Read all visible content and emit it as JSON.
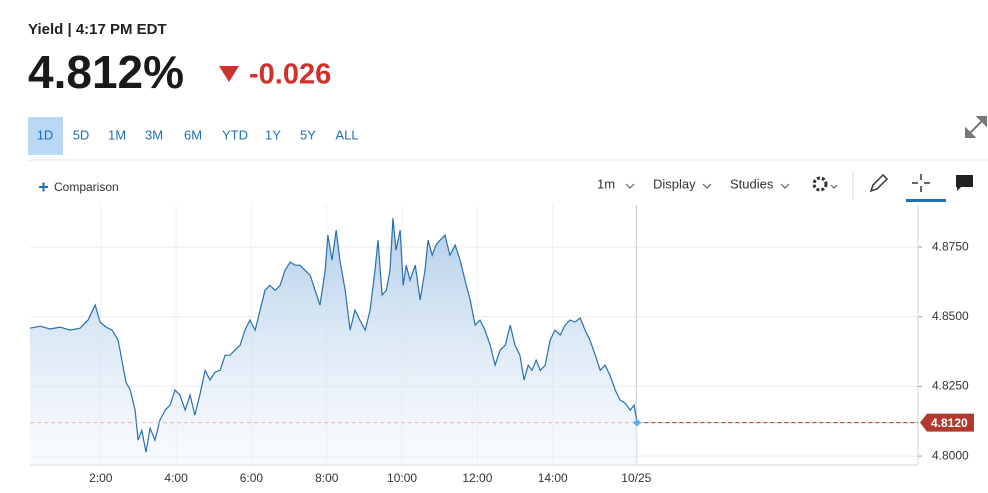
{
  "header": {
    "title": "Yield | 4:17 PM EDT",
    "price": "4.812%",
    "change": "-0.026"
  },
  "ranges": [
    "1D",
    "5D",
    "1M",
    "3M",
    "6M",
    "YTD",
    "1Y",
    "5Y",
    "ALL"
  ],
  "toolbar": {
    "comparison": "Comparison",
    "interval": "1m",
    "display": "Display",
    "studies": "Studies"
  },
  "chart_data": {
    "type": "area",
    "color": "#2a6fb0",
    "grid": true,
    "xlim": [
      0.12,
      23.7
    ],
    "ylim": [
      4.7968,
      4.8901
    ],
    "xticks": [
      {
        "value": 2,
        "label": "2:00"
      },
      {
        "value": 4,
        "label": "4:00"
      },
      {
        "value": 6,
        "label": "6:00"
      },
      {
        "value": 8,
        "label": "8:00"
      },
      {
        "value": 10,
        "label": "10:00"
      },
      {
        "value": 12,
        "label": "12:00"
      },
      {
        "value": 14,
        "label": "14:00"
      },
      {
        "value": 16.22,
        "label": "10/25"
      }
    ],
    "yticks": [
      {
        "value": 4.8,
        "label": "4.8000"
      },
      {
        "value": 4.825,
        "label": "4.8250"
      },
      {
        "value": 4.85,
        "label": "4.8500"
      },
      {
        "value": 4.875,
        "label": "4.8750"
      }
    ],
    "last_price": {
      "value": 4.812,
      "label": "4.8120"
    },
    "x": [
      0.12,
      0.39,
      0.65,
      0.92,
      1.18,
      1.45,
      1.66,
      1.85,
      1.98,
      2.14,
      2.3,
      2.46,
      2.56,
      2.67,
      2.78,
      2.91,
      2.99,
      3.09,
      3.2,
      3.31,
      3.44,
      3.57,
      3.71,
      3.84,
      3.97,
      4.1,
      4.24,
      4.37,
      4.5,
      4.63,
      4.77,
      4.9,
      5.03,
      5.17,
      5.3,
      5.43,
      5.56,
      5.7,
      5.83,
      5.96,
      6.1,
      6.23,
      6.36,
      6.49,
      6.63,
      6.76,
      6.89,
      7.03,
      7.16,
      7.29,
      7.42,
      7.56,
      7.69,
      7.82,
      7.96,
      8.03,
      8.14,
      8.25,
      8.35,
      8.49,
      8.62,
      8.75,
      8.88,
      9.02,
      9.15,
      9.28,
      9.36,
      9.47,
      9.58,
      9.68,
      9.76,
      9.84,
      9.95,
      10.03,
      10.11,
      10.21,
      10.35,
      10.48,
      10.61,
      10.69,
      10.8,
      10.9,
      11.01,
      11.14,
      11.27,
      11.41,
      11.54,
      11.67,
      11.81,
      11.94,
      12.07,
      12.2,
      12.34,
      12.47,
      12.6,
      12.74,
      12.87,
      13.0,
      13.13,
      13.24,
      13.35,
      13.45,
      13.56,
      13.67,
      13.8,
      13.93,
      14.06,
      14.2,
      14.33,
      14.46,
      14.59,
      14.73,
      14.86,
      14.99,
      15.13,
      15.26,
      15.39,
      15.52,
      15.66,
      15.79,
      15.92,
      16.06,
      16.16,
      16.24
    ],
    "values": [
      4.8459,
      4.8466,
      4.8456,
      4.8463,
      4.8452,
      4.8459,
      4.8488,
      4.8542,
      4.8481,
      4.8463,
      4.8452,
      4.8416,
      4.8344,
      4.8265,
      4.8237,
      4.8165,
      4.8057,
      4.8093,
      4.8014,
      4.81,
      4.8057,
      4.8129,
      4.8165,
      4.8183,
      4.8237,
      4.8219,
      4.8165,
      4.8219,
      4.8147,
      4.8219,
      4.8308,
      4.8273,
      4.8301,
      4.8308,
      4.8362,
      4.8362,
      4.838,
      4.8398,
      4.8452,
      4.8488,
      4.8452,
      4.8524,
      4.8595,
      4.8613,
      4.8595,
      4.8613,
      4.8667,
      4.8696,
      4.8685,
      4.8685,
      4.8667,
      4.8649,
      4.8595,
      4.8542,
      4.8667,
      4.8793,
      4.8703,
      4.8811,
      4.8703,
      4.8595,
      4.8452,
      4.8524,
      4.8488,
      4.8452,
      4.8524,
      4.8667,
      4.8775,
      4.8578,
      4.8595,
      4.8667,
      4.8854,
      4.8739,
      4.8811,
      4.8613,
      4.8685,
      4.8631,
      4.8685,
      4.856,
      4.8667,
      4.8775,
      4.8721,
      4.8757,
      4.8775,
      4.8793,
      4.8721,
      4.8757,
      4.8703,
      4.8631,
      4.856,
      4.847,
      4.8488,
      4.8452,
      4.8398,
      4.8326,
      4.838,
      4.8398,
      4.847,
      4.8398,
      4.8362,
      4.8273,
      4.8326,
      4.8308,
      4.8344,
      4.8308,
      4.8326,
      4.8416,
      4.8452,
      4.8434,
      4.847,
      4.8488,
      4.8481,
      4.8495,
      4.8452,
      4.8416,
      4.8362,
      4.8308,
      4.8326,
      4.8291,
      4.8237,
      4.8201,
      4.819,
      4.8165,
      4.8183,
      4.812
    ]
  }
}
